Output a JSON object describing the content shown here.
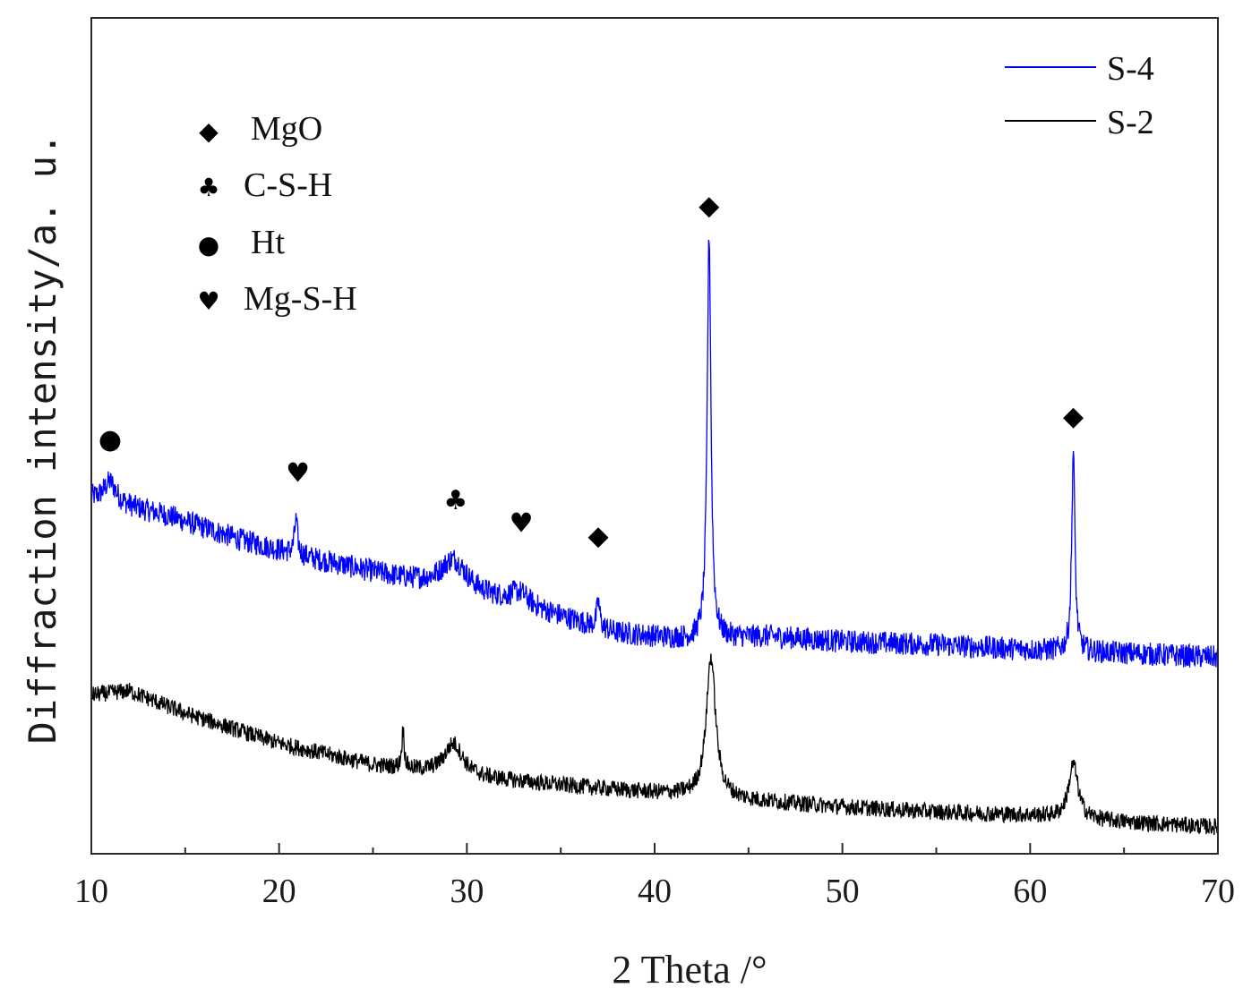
{
  "chart_data": {
    "type": "line",
    "xlabel": "2 Theta /°",
    "ylabel": "Diffraction intensity/a. u.",
    "xlim": [
      10,
      70
    ],
    "ylim": [
      0,
      100
    ],
    "x_ticks": [
      10,
      20,
      30,
      40,
      50,
      60,
      70
    ],
    "y_ticks": [],
    "grid": false,
    "legend_position": "top-right",
    "series": [
      {
        "name": "S-4",
        "color": "#0000ff",
        "noise": 1.4,
        "baseline_points": [
          [
            10,
            42.5
          ],
          [
            14,
            40.5
          ],
          [
            18,
            37.5
          ],
          [
            22,
            35.2
          ],
          [
            26,
            33.2
          ],
          [
            30,
            31.4
          ],
          [
            34,
            29.0
          ],
          [
            38,
            26.4
          ],
          [
            42,
            25.6
          ],
          [
            46,
            26.0
          ],
          [
            50,
            25.4
          ],
          [
            55,
            25.0
          ],
          [
            60,
            24.4
          ],
          [
            65,
            24.0
          ],
          [
            70,
            23.5
          ]
        ],
        "peaks": [
          {
            "x": 11.0,
            "height": 2.5,
            "width": 0.4
          },
          {
            "x": 20.9,
            "height": 4.0,
            "width": 0.1
          },
          {
            "x": 29.3,
            "height": 3.5,
            "width": 0.8
          },
          {
            "x": 32.8,
            "height": 1.5,
            "width": 0.6
          },
          {
            "x": 37.0,
            "height": 3.0,
            "width": 0.1
          },
          {
            "x": 42.9,
            "height": 48.5,
            "width": 0.12
          },
          {
            "x": 62.3,
            "height": 24.2,
            "width": 0.1
          }
        ]
      },
      {
        "name": "S-2",
        "color": "#000000",
        "noise": 1.0,
        "baseline_points": [
          [
            10,
            19.0
          ],
          [
            12,
            19.5
          ],
          [
            15,
            16.8
          ],
          [
            20,
            13.2
          ],
          [
            25,
            10.6
          ],
          [
            30,
            9.2
          ],
          [
            35,
            8.2
          ],
          [
            40,
            7.3
          ],
          [
            45,
            6.4
          ],
          [
            50,
            5.6
          ],
          [
            55,
            5.0
          ],
          [
            60,
            4.6
          ],
          [
            65,
            3.8
          ],
          [
            70,
            3.2
          ]
        ],
        "peaks": [
          {
            "x": 26.6,
            "height": 4.5,
            "width": 0.08
          },
          {
            "x": 29.3,
            "height": 3.8,
            "width": 0.6
          },
          {
            "x": 43.0,
            "height": 16.8,
            "width": 0.3
          },
          {
            "x": 62.3,
            "height": 6.5,
            "width": 0.3
          }
        ]
      }
    ],
    "annotations": [
      {
        "symbol": "●",
        "phase": "Ht",
        "x": 11.0,
        "y": 48.5
      },
      {
        "symbol": "♥",
        "phase": "Mg-S-H",
        "x": 21.0,
        "y": 44.5
      },
      {
        "symbol": "♣",
        "phase": "C-S-H",
        "x": 29.4,
        "y": 41.2
      },
      {
        "symbol": "♥",
        "phase": "Mg-S-H",
        "x": 32.9,
        "y": 38.5
      },
      {
        "symbol": "◆",
        "phase": "MgO",
        "x": 37.0,
        "y": 37.0
      },
      {
        "symbol": "◆",
        "phase": "MgO",
        "x": 42.9,
        "y": 76.5
      },
      {
        "symbol": "◆",
        "phase": "MgO",
        "x": 62.3,
        "y": 51.3
      }
    ],
    "phase_key": [
      {
        "symbol": "◆",
        "label": "MgO"
      },
      {
        "symbol": "♣",
        "label": "C-S-H"
      },
      {
        "symbol": "●",
        "label": "Ht"
      },
      {
        "symbol": "♥",
        "label": "Mg-S-H"
      }
    ]
  }
}
